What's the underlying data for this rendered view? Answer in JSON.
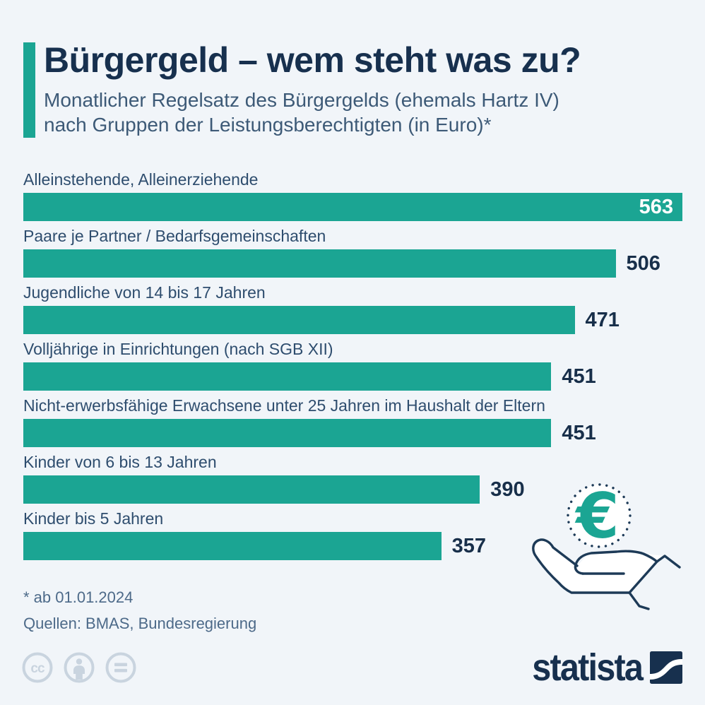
{
  "header": {
    "title": "Bürgergeld – wem steht was zu?",
    "subtitle_line1": "Monatlicher Regelsatz des Bürgergelds (ehemals Hartz IV)",
    "subtitle_line2": "nach Gruppen der Leistungsberechtigten (in Euro)*"
  },
  "chart_data": {
    "type": "bar",
    "orientation": "horizontal",
    "title": "Bürgergeld – wem steht was zu?",
    "subtitle": "Monatlicher Regelsatz des Bürgergelds (ehemals Hartz IV) nach Gruppen der Leistungsberechtigten (in Euro)*",
    "unit": "Euro",
    "categories": [
      "Alleinstehende, Alleinerziehende",
      "Paare je Partner / Bedarfsgemeinschaften",
      "Jugendliche von 14 bis 17 Jahren",
      "Volljährige in Einrichtungen (nach SGB XII)",
      "Nicht-erwerbsfähige Erwachsene unter 25 Jahren im Haushalt der Eltern",
      "Kinder von 6 bis 13 Jahren",
      "Kinder bis 5 Jahren"
    ],
    "values": [
      563,
      506,
      471,
      451,
      451,
      390,
      357
    ],
    "value_label_inside_bar": [
      true,
      false,
      false,
      false,
      false,
      false,
      false
    ],
    "xlim": [
      0,
      563
    ],
    "grid": false,
    "legend": false,
    "bar_color": "#1ba593",
    "value_label_color": "#182f4a",
    "value_label_color_inside": "#ffffff"
  },
  "annotations": {
    "footnote": "* ab 01.01.2024",
    "source": "Quellen: BMAS, Bundesregierung"
  },
  "illustration": {
    "euro_symbol": "€"
  },
  "branding": {
    "logo_text": "statista",
    "license_icons": [
      "cc-icon",
      "attribution-person-icon",
      "no-derivatives-equals-icon"
    ]
  },
  "colors": {
    "background": "#f1f5f9",
    "accent_teal": "#1ba593",
    "title_navy": "#17304e",
    "subtitle_slate": "#3d5a77",
    "label_slate": "#2e4d6e",
    "note_slate": "#4d6a89",
    "license_gray": "#c9d4df",
    "icon_navy": "#1d3a57"
  }
}
